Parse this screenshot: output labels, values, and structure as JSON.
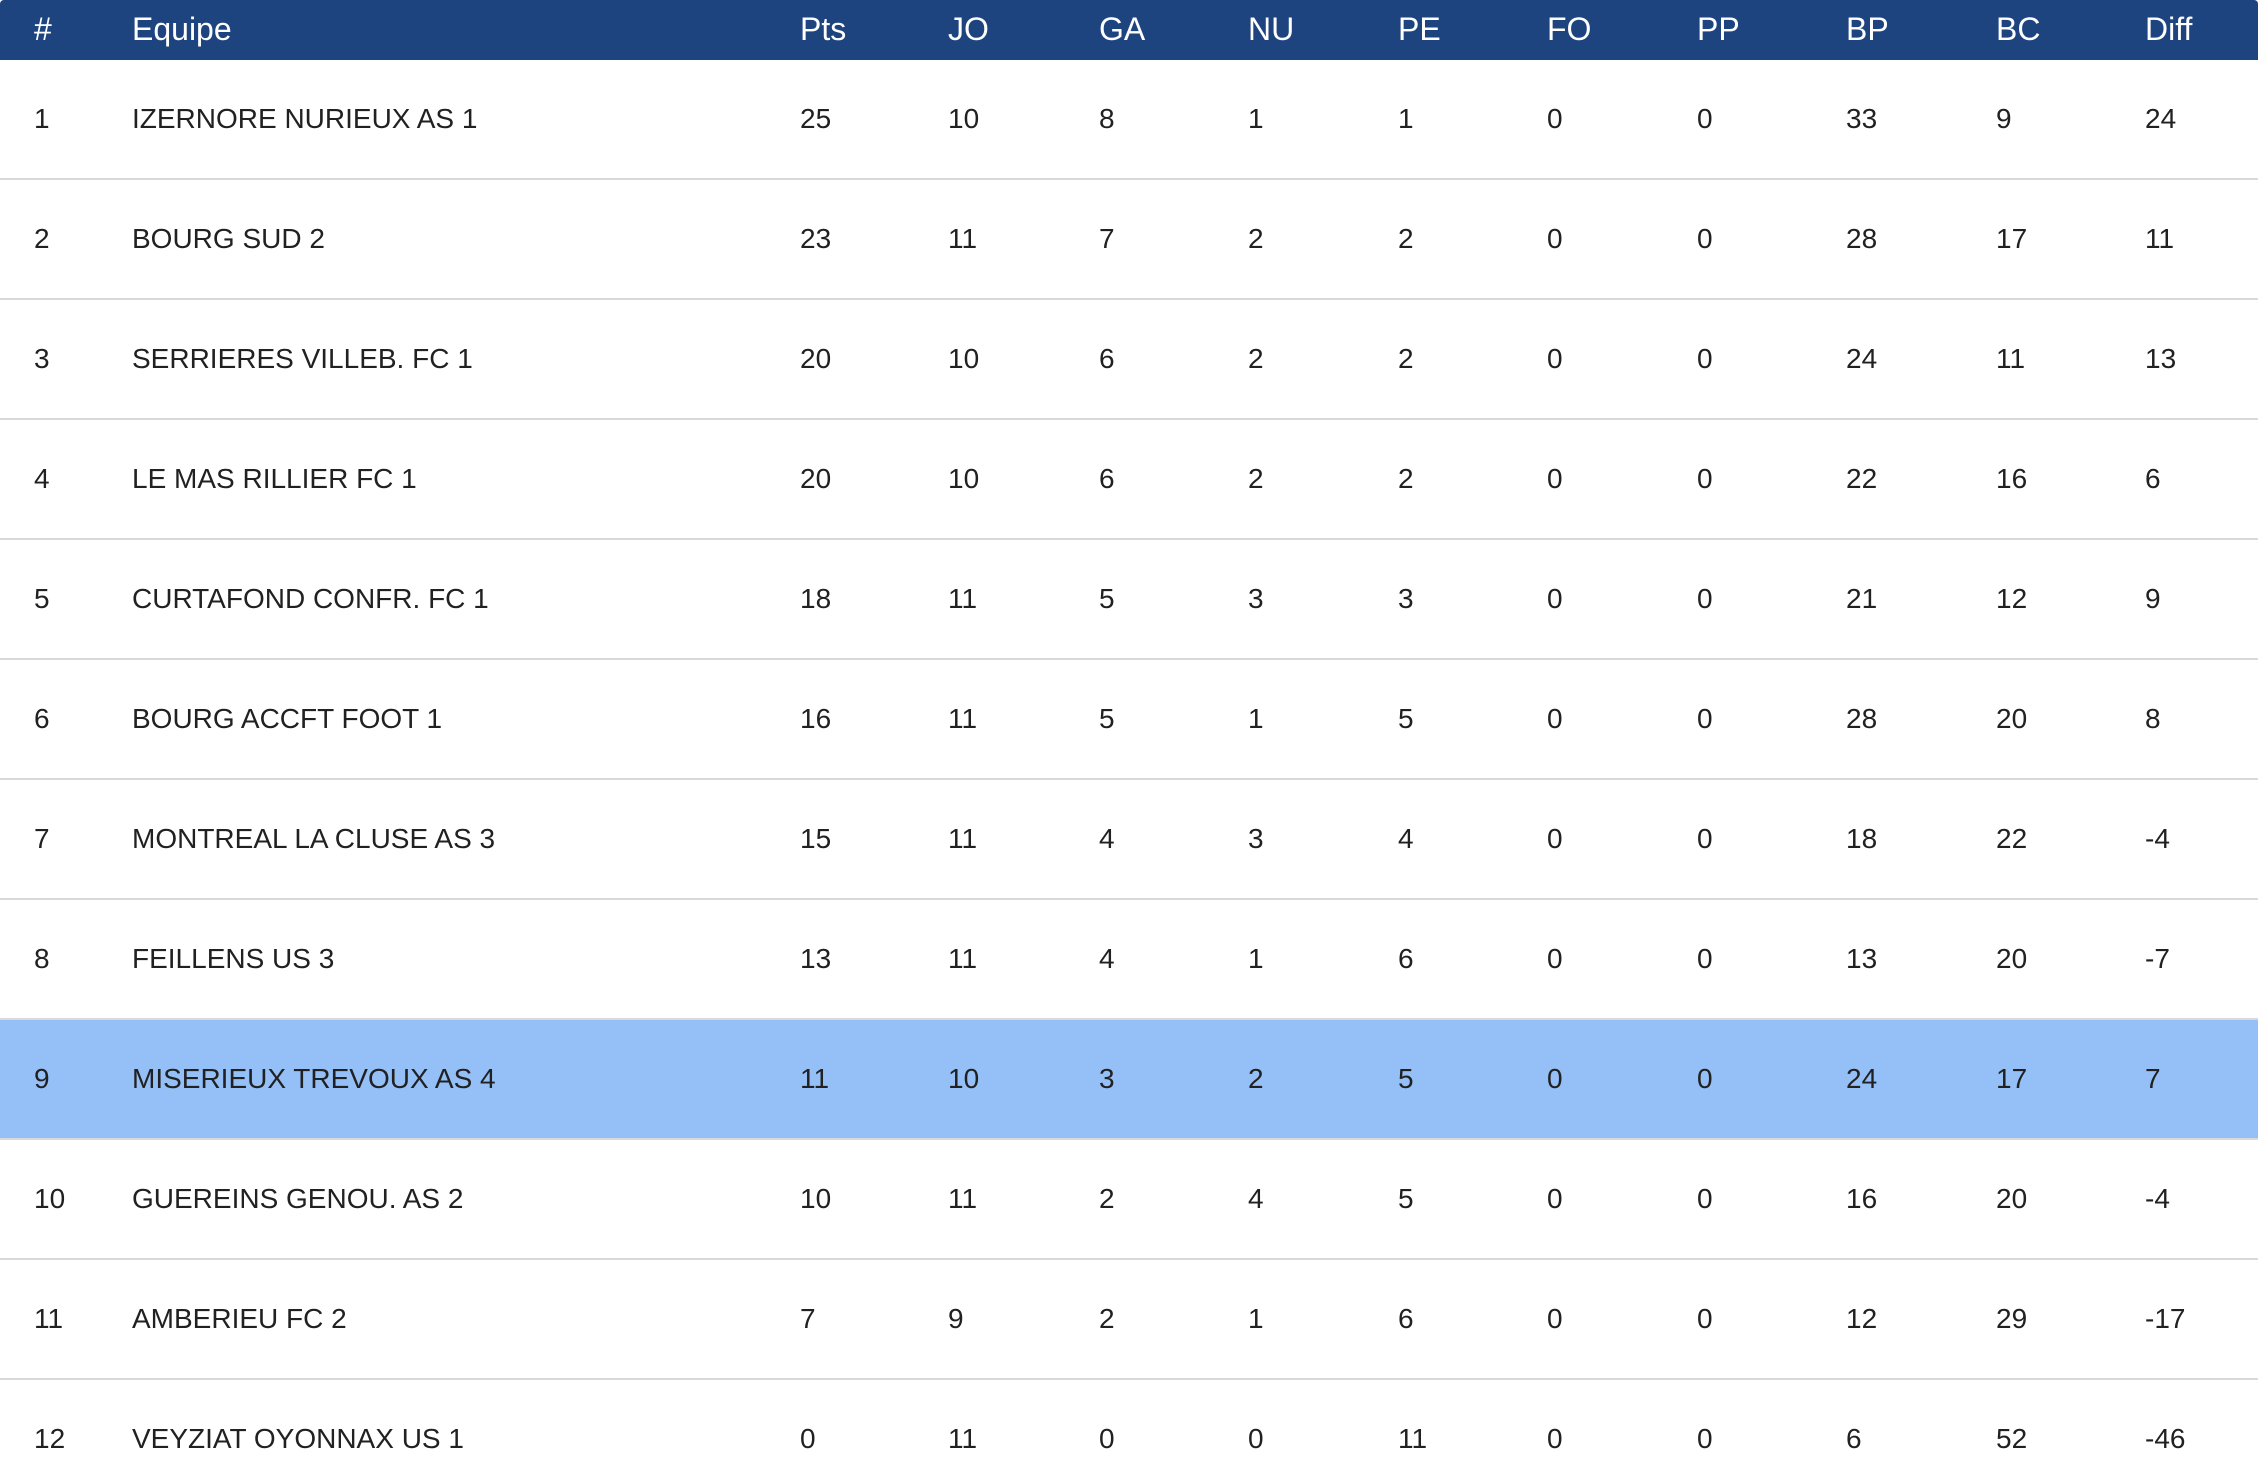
{
  "table": {
    "columns": [
      "#",
      "Equipe",
      "Pts",
      "JO",
      "GA",
      "NU",
      "PE",
      "FO",
      "PP",
      "BP",
      "BC",
      "Diff"
    ],
    "highlight_color": "#94bff7",
    "header_color": "#1d447f",
    "rows": [
      {
        "rank": "1",
        "team": "IZERNORE NURIEUX AS 1",
        "pts": "25",
        "jo": "10",
        "ga": "8",
        "nu": "1",
        "pe": "1",
        "fo": "0",
        "pp": "0",
        "bp": "33",
        "bc": "9",
        "diff": "24",
        "highlighted": false
      },
      {
        "rank": "2",
        "team": "BOURG SUD 2",
        "pts": "23",
        "jo": "11",
        "ga": "7",
        "nu": "2",
        "pe": "2",
        "fo": "0",
        "pp": "0",
        "bp": "28",
        "bc": "17",
        "diff": "11",
        "highlighted": false
      },
      {
        "rank": "3",
        "team": "SERRIERES VILLEB. FC 1",
        "pts": "20",
        "jo": "10",
        "ga": "6",
        "nu": "2",
        "pe": "2",
        "fo": "0",
        "pp": "0",
        "bp": "24",
        "bc": "11",
        "diff": "13",
        "highlighted": false
      },
      {
        "rank": "4",
        "team": "LE MAS RILLIER FC 1",
        "pts": "20",
        "jo": "10",
        "ga": "6",
        "nu": "2",
        "pe": "2",
        "fo": "0",
        "pp": "0",
        "bp": "22",
        "bc": "16",
        "diff": "6",
        "highlighted": false
      },
      {
        "rank": "5",
        "team": "CURTAFOND CONFR. FC 1",
        "pts": "18",
        "jo": "11",
        "ga": "5",
        "nu": "3",
        "pe": "3",
        "fo": "0",
        "pp": "0",
        "bp": "21",
        "bc": "12",
        "diff": "9",
        "highlighted": false
      },
      {
        "rank": "6",
        "team": "BOURG ACCFT FOOT 1",
        "pts": "16",
        "jo": "11",
        "ga": "5",
        "nu": "1",
        "pe": "5",
        "fo": "0",
        "pp": "0",
        "bp": "28",
        "bc": "20",
        "diff": "8",
        "highlighted": false
      },
      {
        "rank": "7",
        "team": "MONTREAL LA CLUSE AS 3",
        "pts": "15",
        "jo": "11",
        "ga": "4",
        "nu": "3",
        "pe": "4",
        "fo": "0",
        "pp": "0",
        "bp": "18",
        "bc": "22",
        "diff": "-4",
        "highlighted": false
      },
      {
        "rank": "8",
        "team": "FEILLENS US 3",
        "pts": "13",
        "jo": "11",
        "ga": "4",
        "nu": "1",
        "pe": "6",
        "fo": "0",
        "pp": "0",
        "bp": "13",
        "bc": "20",
        "diff": "-7",
        "highlighted": false
      },
      {
        "rank": "9",
        "team": "MISERIEUX TREVOUX AS 4",
        "pts": "11",
        "jo": "10",
        "ga": "3",
        "nu": "2",
        "pe": "5",
        "fo": "0",
        "pp": "0",
        "bp": "24",
        "bc": "17",
        "diff": "7",
        "highlighted": true
      },
      {
        "rank": "10",
        "team": "GUEREINS GENOU. AS 2",
        "pts": "10",
        "jo": "11",
        "ga": "2",
        "nu": "4",
        "pe": "5",
        "fo": "0",
        "pp": "0",
        "bp": "16",
        "bc": "20",
        "diff": "-4",
        "highlighted": false
      },
      {
        "rank": "11",
        "team": "AMBERIEU FC 2",
        "pts": "7",
        "jo": "9",
        "ga": "2",
        "nu": "1",
        "pe": "6",
        "fo": "0",
        "pp": "0",
        "bp": "12",
        "bc": "29",
        "diff": "-17",
        "highlighted": false
      },
      {
        "rank": "12",
        "team": "VEYZIAT OYONNAX US 1",
        "pts": "0",
        "jo": "11",
        "ga": "0",
        "nu": "0",
        "pe": "11",
        "fo": "0",
        "pp": "0",
        "bp": "6",
        "bc": "52",
        "diff": "-46",
        "highlighted": false
      }
    ]
  }
}
